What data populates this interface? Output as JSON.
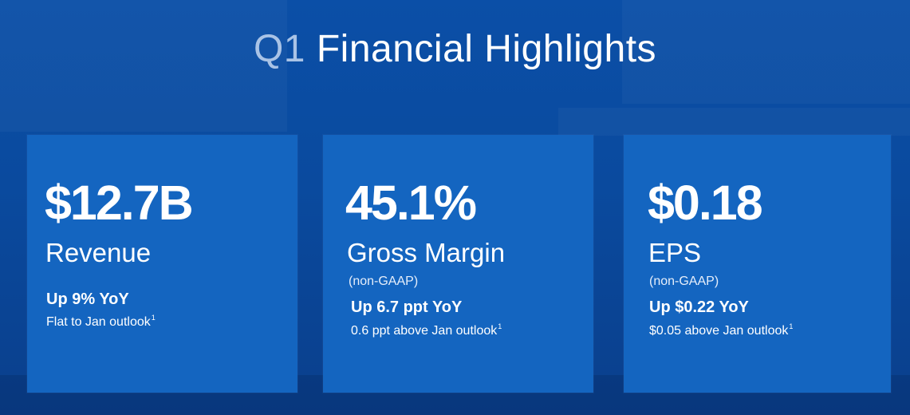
{
  "title": {
    "prefix": "Q1",
    "main": "Financial Highlights"
  },
  "cards": [
    {
      "value": "$12.7B",
      "label": "Revenue",
      "qualifier": "",
      "change": "Up 9% YoY",
      "note": "Flat to Jan outlook",
      "footnote": "1"
    },
    {
      "value": "45.1%",
      "label": "Gross Margin",
      "qualifier": "(non-GAAP)",
      "change": "Up 6.7 ppt YoY",
      "note": "0.6 ppt above Jan outlook",
      "footnote": "1"
    },
    {
      "value": "$0.18",
      "label": "EPS",
      "qualifier": "(non-GAAP)",
      "change": "Up $0.22 YoY",
      "note": "$0.05 above Jan outlook",
      "footnote": "1"
    }
  ]
}
